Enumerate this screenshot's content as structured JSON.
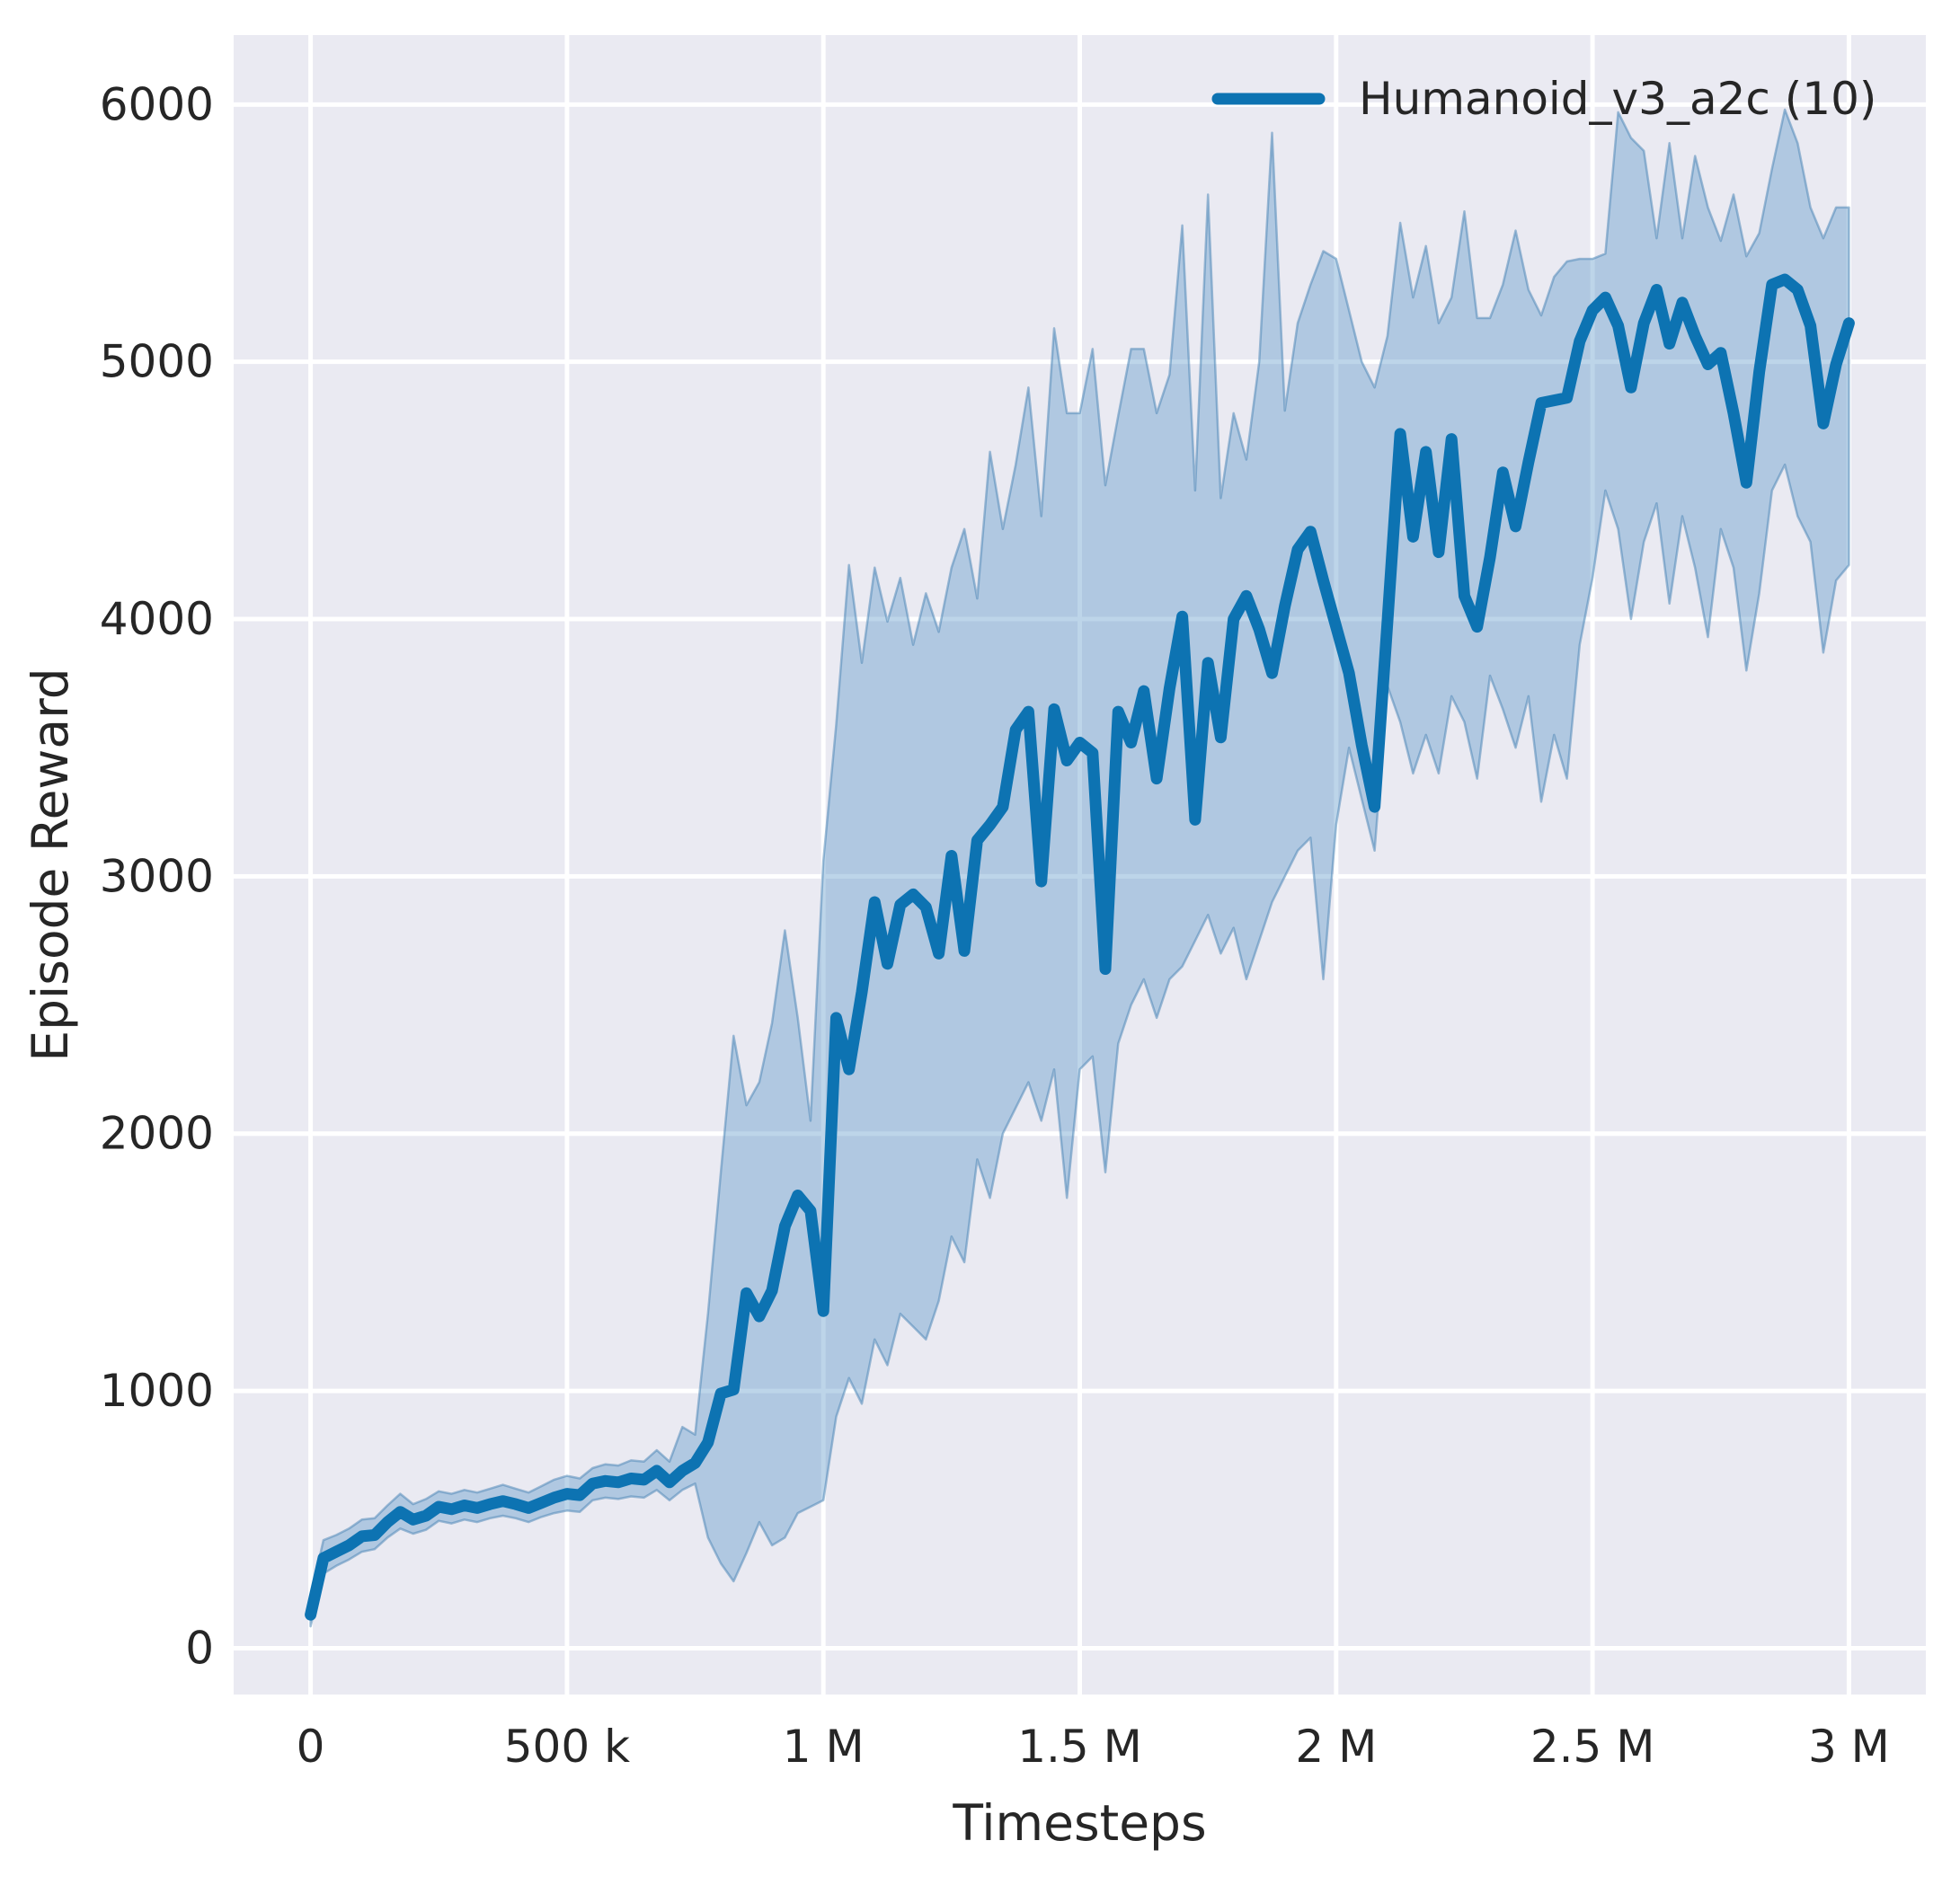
{
  "chart_data": {
    "type": "line",
    "title": "",
    "xlabel": "Timesteps",
    "ylabel": "Episode Reward",
    "grid": true,
    "legend_position": "upper right",
    "axes_background": "#eaeaf2",
    "gridline_color": "#ffffff",
    "line_color": "#0d73b2",
    "band_fill": "rgba(90,150,200,0.40)",
    "band_edge": "rgba(70,130,180,0.50)",
    "tick_color": "#262626",
    "xlim": [
      -150000,
      3150000
    ],
    "ylim": [
      -180,
      6270
    ],
    "x_ticks": [
      {
        "value": 0,
        "label": "0"
      },
      {
        "value": 500000,
        "label": "500 k"
      },
      {
        "value": 1000000,
        "label": "1 M"
      },
      {
        "value": 1500000,
        "label": "1.5 M"
      },
      {
        "value": 2000000,
        "label": "2 M"
      },
      {
        "value": 2500000,
        "label": "2.5 M"
      },
      {
        "value": 3000000,
        "label": "3 M"
      }
    ],
    "y_ticks": [
      {
        "value": 0,
        "label": "0"
      },
      {
        "value": 1000,
        "label": "1000"
      },
      {
        "value": 2000,
        "label": "2000"
      },
      {
        "value": 3000,
        "label": "3000"
      },
      {
        "value": 4000,
        "label": "4000"
      },
      {
        "value": 5000,
        "label": "5000"
      },
      {
        "value": 6000,
        "label": "6000"
      }
    ],
    "legend": [
      {
        "label": "Humanoid_v3_a2c (10)",
        "color": "#0d73b2"
      }
    ],
    "series": [
      {
        "name": "Humanoid_v3_a2c (10)",
        "x_start": 0,
        "x_step": 25000,
        "mean": [
          130,
          350,
          375,
          400,
          435,
          440,
          490,
          530,
          500,
          515,
          550,
          540,
          555,
          545,
          560,
          572,
          560,
          545,
          565,
          585,
          600,
          595,
          640,
          650,
          645,
          660,
          655,
          690,
          645,
          690,
          720,
          800,
          990,
          1005,
          1380,
          1290,
          1390,
          1640,
          1760,
          1700,
          1310,
          2450,
          2250,
          2550,
          2900,
          2660,
          2890,
          2930,
          2880,
          2700,
          3080,
          2710,
          3140,
          3200,
          3270,
          3570,
          3640,
          2980,
          3650,
          3450,
          3520,
          3480,
          2640,
          3640,
          3520,
          3720,
          3380,
          3730,
          4010,
          3220,
          3830,
          3540,
          4000,
          4090,
          3960,
          3790,
          4050,
          4270,
          4340,
          4150,
          3970,
          3790,
          3510,
          3270,
          3990,
          4720,
          4320,
          4650,
          4260,
          4700,
          4090,
          3970,
          4240,
          4570,
          4360,
          4610,
          4840,
          4850,
          4860,
          5080,
          5200,
          5250,
          5140,
          4900,
          5150,
          5280,
          5070,
          5230,
          5100,
          4990,
          5035,
          4800,
          4530,
          4960,
          5300,
          5320,
          5280,
          5140,
          4760,
          4990,
          5150
        ],
        "upper": [
          200,
          420,
          440,
          465,
          500,
          505,
          555,
          600,
          560,
          580,
          610,
          600,
          615,
          605,
          620,
          635,
          620,
          605,
          630,
          655,
          670,
          660,
          700,
          715,
          710,
          730,
          725,
          770,
          725,
          860,
          830,
          1300,
          1850,
          2380,
          2110,
          2200,
          2430,
          2790,
          2450,
          2050,
          3060,
          3590,
          4210,
          3830,
          4200,
          3990,
          4160,
          3900,
          4100,
          3950,
          4200,
          4350,
          4080,
          4650,
          4350,
          4600,
          4900,
          4400,
          5130,
          4800,
          4800,
          5050,
          4520,
          4790,
          5050,
          5050,
          4800,
          4950,
          5530,
          4500,
          5650,
          4470,
          4800,
          4620,
          5000,
          5890,
          4810,
          5150,
          5300,
          5430,
          5400,
          5200,
          5000,
          4900,
          5100,
          5540,
          5250,
          5450,
          5150,
          5250,
          5585,
          5170,
          5170,
          5300,
          5510,
          5280,
          5180,
          5330,
          5390,
          5400,
          5400,
          5420,
          5970,
          5870,
          5820,
          5480,
          5850,
          5480,
          5800,
          5600,
          5470,
          5650,
          5410,
          5500,
          5750,
          5980,
          5850,
          5600,
          5480,
          5600,
          5600
        ],
        "lower": [
          85,
          290,
          320,
          345,
          375,
          385,
          430,
          465,
          445,
          460,
          495,
          485,
          500,
          490,
          505,
          515,
          505,
          490,
          510,
          525,
          535,
          530,
          575,
          585,
          580,
          590,
          585,
          615,
          575,
          615,
          640,
          430,
          330,
          260,
          370,
          490,
          400,
          430,
          525,
          550,
          575,
          900,
          1050,
          950,
          1200,
          1100,
          1300,
          1250,
          1200,
          1350,
          1600,
          1500,
          1900,
          1750,
          2000,
          2100,
          2200,
          2050,
          2250,
          1750,
          2250,
          2300,
          1850,
          2350,
          2500,
          2600,
          2450,
          2600,
          2650,
          2750,
          2850,
          2700,
          2800,
          2600,
          2750,
          2900,
          3000,
          3100,
          3150,
          2600,
          3200,
          3500,
          3300,
          3100,
          3740,
          3600,
          3400,
          3550,
          3400,
          3700,
          3600,
          3380,
          3780,
          3650,
          3500,
          3700,
          3290,
          3550,
          3380,
          3900,
          4160,
          4500,
          4350,
          4000,
          4300,
          4450,
          4060,
          4400,
          4200,
          3930,
          4350,
          4200,
          3800,
          4100,
          4500,
          4600,
          4400,
          4300,
          3870,
          4150,
          4210
        ]
      }
    ]
  }
}
